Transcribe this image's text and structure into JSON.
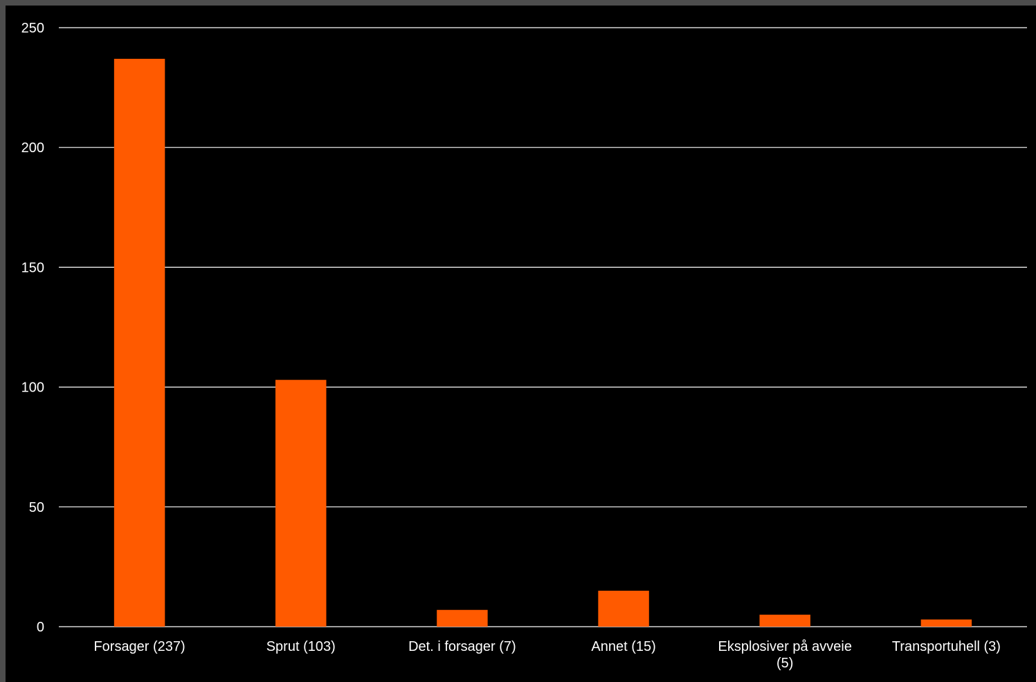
{
  "chart_data": {
    "type": "bar",
    "categories": [
      "Forsager (237)",
      "Sprut (103)",
      "Det. i forsager (7)",
      "Annet (15)",
      "Eksplosiver på avveie (5)",
      "Transportuhell (3)"
    ],
    "category_lines": [
      [
        "Forsager (237)"
      ],
      [
        "Sprut (103)"
      ],
      [
        "Det. i forsager (7)"
      ],
      [
        "Annet (15)"
      ],
      [
        "Eksplosiver på avveie",
        "(5)"
      ],
      [
        "Transportuhell (3)"
      ]
    ],
    "values": [
      237,
      103,
      7,
      15,
      5,
      3
    ],
    "title": "",
    "xlabel": "",
    "ylabel": "",
    "ylim": [
      0,
      250
    ],
    "yticks": [
      0,
      50,
      100,
      150,
      200,
      250
    ],
    "grid": true,
    "legend": "none",
    "colors": {
      "bar": "#ff5a00",
      "background": "#000000",
      "frame": "#4d4d4d",
      "grid": "#ffffff",
      "text": "#ffffff"
    }
  }
}
